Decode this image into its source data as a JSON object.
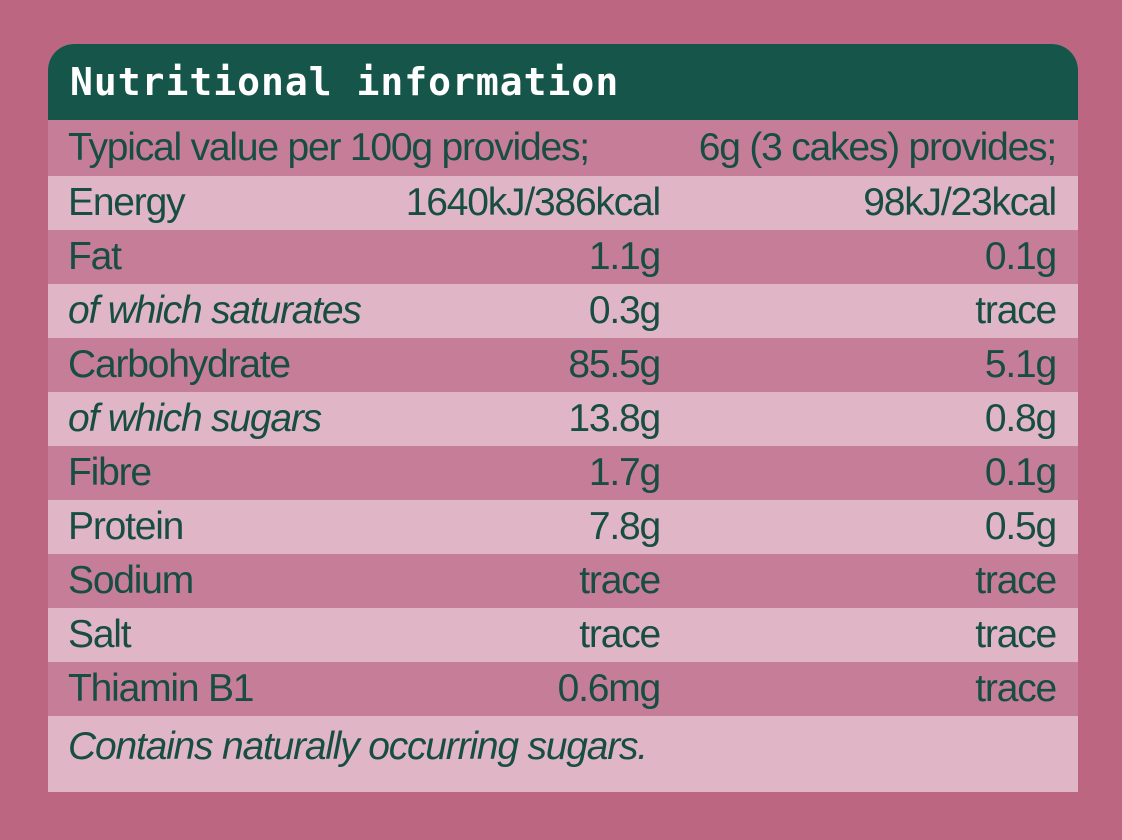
{
  "title": "Nutritional information",
  "column_headers": {
    "per_100g": "Typical value per 100g provides;",
    "per_serving": "6g (3 cakes) provides;"
  },
  "rows": [
    {
      "nutrient": "Energy",
      "per_100g": "1640kJ/386kcal",
      "per_serving": "98kJ/23kcal"
    },
    {
      "nutrient": "Fat",
      "per_100g": "1.1g",
      "per_serving": "0.1g"
    },
    {
      "nutrient": "of which saturates",
      "per_100g": "0.3g",
      "per_serving": "trace"
    },
    {
      "nutrient": "Carbohydrate",
      "per_100g": "85.5g",
      "per_serving": "5.1g"
    },
    {
      "nutrient": "of which sugars",
      "per_100g": "13.8g",
      "per_serving": "0.8g"
    },
    {
      "nutrient": "Fibre",
      "per_100g": "1.7g",
      "per_serving": "0.1g"
    },
    {
      "nutrient": "Protein",
      "per_100g": "7.8g",
      "per_serving": "0.5g"
    },
    {
      "nutrient": "Sodium",
      "per_100g": "trace",
      "per_serving": "trace"
    },
    {
      "nutrient": "Salt",
      "per_100g": "trace",
      "per_serving": "trace"
    },
    {
      "nutrient": "Thiamin B1",
      "per_100g": "0.6mg",
      "per_serving": "trace"
    }
  ],
  "footnote": "Contains naturally occurring sugars.",
  "colors": {
    "background": "#bd6681",
    "header": "#16564a",
    "row_dark": "#c67d98",
    "row_light": "#e0b6c6",
    "text": "#174d43"
  }
}
